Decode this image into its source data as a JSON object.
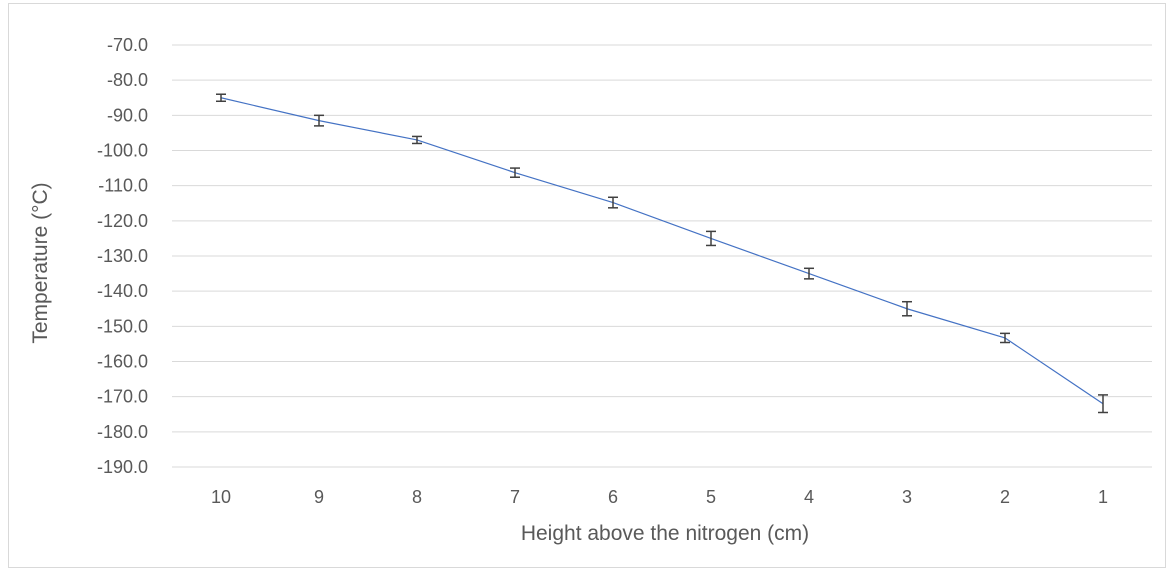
{
  "chart_data": {
    "type": "line",
    "xlabel": "Height above the nitrogen (cm)",
    "ylabel": "Temperature (°C)",
    "categories": [
      "10",
      "9",
      "8",
      "7",
      "6",
      "5",
      "4",
      "3",
      "2",
      "1"
    ],
    "series": [
      {
        "values": [
          -85.0,
          -91.5,
          -97.0,
          -106.3,
          -114.8,
          -125.0,
          -135.0,
          -145.0,
          -153.3,
          -172.0
        ],
        "errors": [
          1.0,
          1.5,
          1.0,
          1.3,
          1.5,
          2.0,
          1.5,
          2.0,
          1.3,
          2.5
        ],
        "color": "#4472c4"
      }
    ],
    "ylim": [
      -190,
      -70
    ],
    "ytick_step": 10,
    "ytick_format": "0.0",
    "grid": true,
    "gridline_color": "#d9d9d9",
    "errorbar_color": "#404040"
  }
}
